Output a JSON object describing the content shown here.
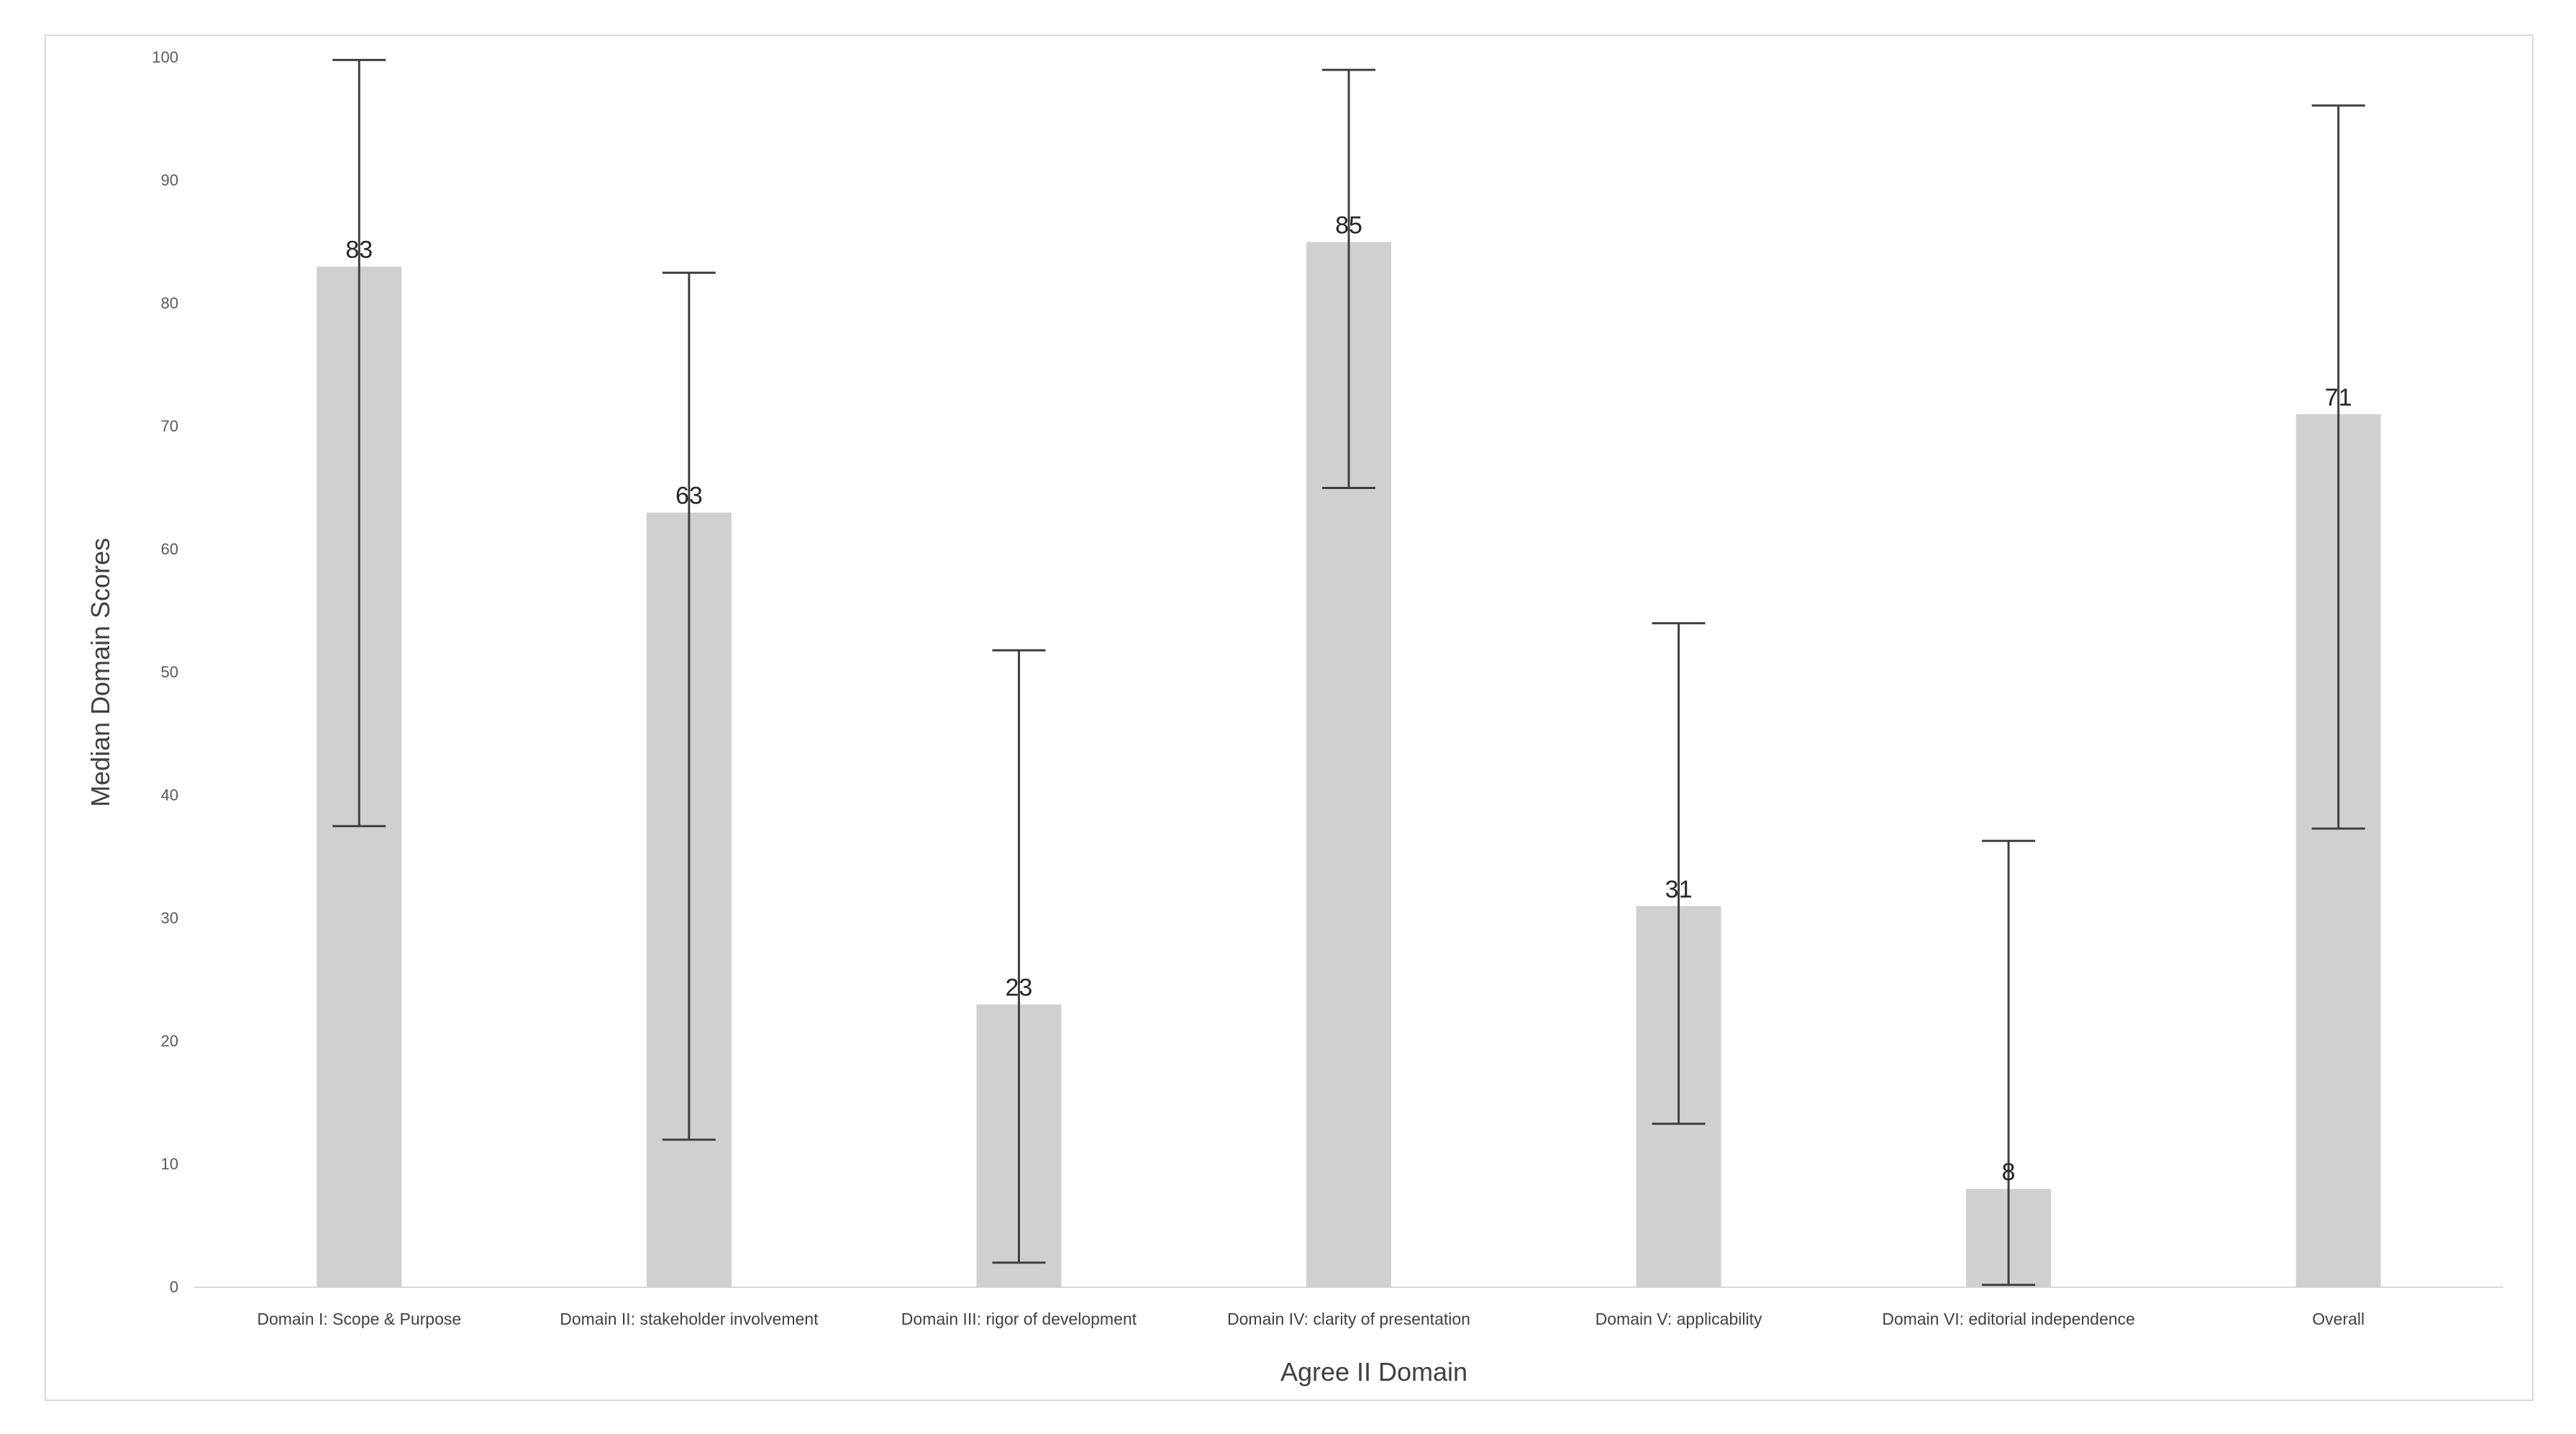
{
  "chart_data": {
    "type": "bar",
    "title": "",
    "xlabel": "Agree II Domain",
    "ylabel": "Median Domain Scores",
    "ylim": [
      0,
      100
    ],
    "yticks": [
      0,
      10,
      20,
      30,
      40,
      50,
      60,
      70,
      80,
      90,
      100
    ],
    "grid": false,
    "legend": "none",
    "bar_color": "#d0d0d0",
    "error_bar_color": "#3f3f3f",
    "categories": [
      "Domain I: Scope & Purpose",
      "Domain II: stakeholder involvement",
      "Domain III: rigor of development",
      "Domain IV: clarity of presentation",
      "Domain V: applicability",
      "Domain VI: editorial independence",
      "Overall"
    ],
    "values": [
      83,
      63,
      23,
      85,
      31,
      8,
      71
    ],
    "data_labels": [
      "83",
      "63",
      "23",
      "85",
      "31",
      "8",
      "71"
    ],
    "error_low": [
      37.5,
      12,
      2,
      65,
      13.3,
      0.2,
      37.3
    ],
    "error_high": [
      99.8,
      82.5,
      51.8,
      99,
      54,
      36.3,
      96.1
    ]
  }
}
